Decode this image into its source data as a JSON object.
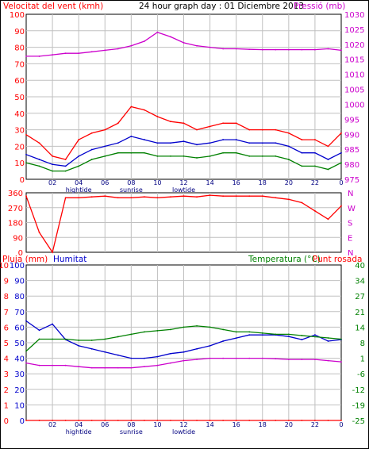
{
  "chart_data": [
    {
      "type": "line",
      "panel": "wind-pressure",
      "title": "24 hour graph day : 01 Diciembre 2013",
      "left_axis_label": "Velocitat del vent (kmh)",
      "right_axis_label": "Pressió (mb)",
      "x_ticks": [
        "02",
        "04",
        "06",
        "08",
        "10",
        "12",
        "14",
        "16",
        "18",
        "20",
        "22",
        "0"
      ],
      "x_markers": [
        "hightide",
        "sunrise",
        "lowtide"
      ],
      "ylim_left": [
        0,
        100
      ],
      "yticks_left": [
        "0",
        "10",
        "20",
        "30",
        "40",
        "50",
        "60",
        "70",
        "80",
        "90",
        "100"
      ],
      "ylim_right": [
        975,
        1030
      ],
      "yticks_right": [
        "975",
        "980",
        "985",
        "990",
        "995",
        "1000",
        "1005",
        "1010",
        "1015",
        "1020",
        "1025",
        "1030"
      ],
      "x": [
        0,
        1,
        2,
        3,
        4,
        5,
        6,
        7,
        8,
        9,
        10,
        11,
        12,
        13,
        14,
        15,
        16,
        17,
        18,
        19,
        20,
        21,
        22,
        23,
        24
      ],
      "series": [
        {
          "color": "#ff0000",
          "axis": "left",
          "values": [
            27,
            22,
            14,
            12,
            24,
            28,
            30,
            34,
            44,
            42,
            38,
            35,
            34,
            30,
            32,
            34,
            34,
            30,
            30,
            30,
            28,
            24,
            24,
            20,
            28
          ]
        },
        {
          "color": "#0000cc",
          "axis": "left",
          "values": [
            15,
            12,
            9,
            8,
            14,
            18,
            20,
            22,
            26,
            24,
            22,
            22,
            23,
            21,
            22,
            24,
            24,
            22,
            22,
            22,
            20,
            16,
            16,
            12,
            16
          ]
        },
        {
          "color": "#008000",
          "axis": "left",
          "values": [
            10,
            8,
            5,
            5,
            8,
            12,
            14,
            16,
            16,
            16,
            14,
            14,
            14,
            13,
            14,
            16,
            16,
            14,
            14,
            14,
            12,
            8,
            8,
            6,
            10
          ]
        },
        {
          "color": "#cc00cc",
          "axis": "right",
          "values": [
            1016,
            1016,
            1016.5,
            1017,
            1017,
            1017.5,
            1018,
            1018.5,
            1019.5,
            1021,
            1024,
            1022.5,
            1020.5,
            1019.5,
            1019,
            1018.5,
            1018.5,
            1018.3,
            1018.2,
            1018.2,
            1018.2,
            1018.2,
            1018.2,
            1018.5,
            1018
          ]
        }
      ]
    },
    {
      "type": "line",
      "panel": "wind-direction",
      "yticks_left": [
        "360",
        "270",
        "180",
        "90",
        "0"
      ],
      "ylim_left": [
        0,
        360
      ],
      "yticks_right": [
        "N",
        "W",
        "S",
        "E",
        "N"
      ],
      "x": [
        0,
        1,
        2,
        3,
        4,
        5,
        6,
        7,
        8,
        9,
        10,
        11,
        12,
        13,
        14,
        15,
        16,
        17,
        18,
        19,
        20,
        21,
        22,
        23,
        24
      ],
      "series": [
        {
          "color": "#ff0000",
          "values": [
            340,
            120,
            0,
            330,
            330,
            335,
            340,
            330,
            330,
            335,
            330,
            335,
            340,
            335,
            345,
            340,
            340,
            340,
            340,
            330,
            320,
            300,
            250,
            200,
            280
          ]
        }
      ]
    },
    {
      "type": "line",
      "panel": "rain-humidity-temperature",
      "left_axis_label_rain": "Pluja (mm)",
      "left_axis_label_humidity": "Humitat",
      "right_axis_label_temp": "Temperatura (°C)",
      "right_axis_label_dew": "Punt rosada",
      "yticks_rain": [
        "0",
        "1",
        "2",
        "3",
        "4",
        "5",
        "6",
        "7",
        "8",
        "9",
        "10"
      ],
      "yticks_humidity": [
        "0",
        "10",
        "20",
        "30",
        "40",
        "50",
        "60",
        "70",
        "80",
        "90",
        "100"
      ],
      "ylim_humidity": [
        0,
        100
      ],
      "yticks_temp": [
        "-25",
        "-19",
        "-12",
        "-6",
        "1",
        "8",
        "14",
        "21",
        "27",
        "34",
        "40"
      ],
      "ylim_temp": [
        -25,
        40
      ],
      "x_ticks": [
        "02",
        "04",
        "06",
        "08",
        "10",
        "12",
        "14",
        "16",
        "18",
        "20",
        "22",
        "0"
      ],
      "x_markers": [
        "hightide",
        "sunrise",
        "lowtide"
      ],
      "x": [
        0,
        1,
        2,
        3,
        4,
        5,
        6,
        7,
        8,
        9,
        10,
        11,
        12,
        13,
        14,
        15,
        16,
        17,
        18,
        19,
        20,
        21,
        22,
        23,
        24
      ],
      "series": [
        {
          "color": "#0000cc",
          "axis": "humidity",
          "values": [
            64,
            58,
            62,
            52,
            48,
            46,
            44,
            42,
            40,
            40,
            41,
            43,
            44,
            46,
            48,
            51,
            53,
            55,
            55,
            55,
            54,
            52,
            55,
            51,
            52
          ]
        },
        {
          "color": "#008000",
          "axis": "temp",
          "values": [
            4,
            9,
            9,
            9,
            8.5,
            8.5,
            9,
            10,
            11,
            12,
            12.5,
            13,
            14,
            14.5,
            14,
            13,
            12,
            12,
            11.5,
            11,
            11,
            10.5,
            10,
            9.5,
            9
          ]
        },
        {
          "color": "#cc00cc",
          "axis": "temp",
          "values": [
            -1,
            -2,
            -2,
            -2,
            -2.5,
            -3,
            -3,
            -3,
            -3,
            -2.5,
            -2,
            -1,
            0,
            0.5,
            1,
            1,
            1,
            1,
            1,
            0.8,
            0.5,
            0.5,
            0.5,
            0,
            -0.5
          ]
        },
        {
          "color": "#ff0000",
          "axis": "rain",
          "values": [
            0,
            0,
            0,
            0,
            0,
            0,
            0,
            0,
            0,
            0,
            0,
            0,
            0,
            0,
            0,
            0,
            0,
            0,
            0,
            0,
            0,
            0,
            0,
            0,
            0
          ]
        }
      ]
    }
  ],
  "colors": {
    "wind_axis": "#ff0000",
    "pressure_axis": "#cc00cc",
    "humidity_axis": "#0000cc",
    "temp_axis": "#008000",
    "grid": "#c0c0c0"
  }
}
